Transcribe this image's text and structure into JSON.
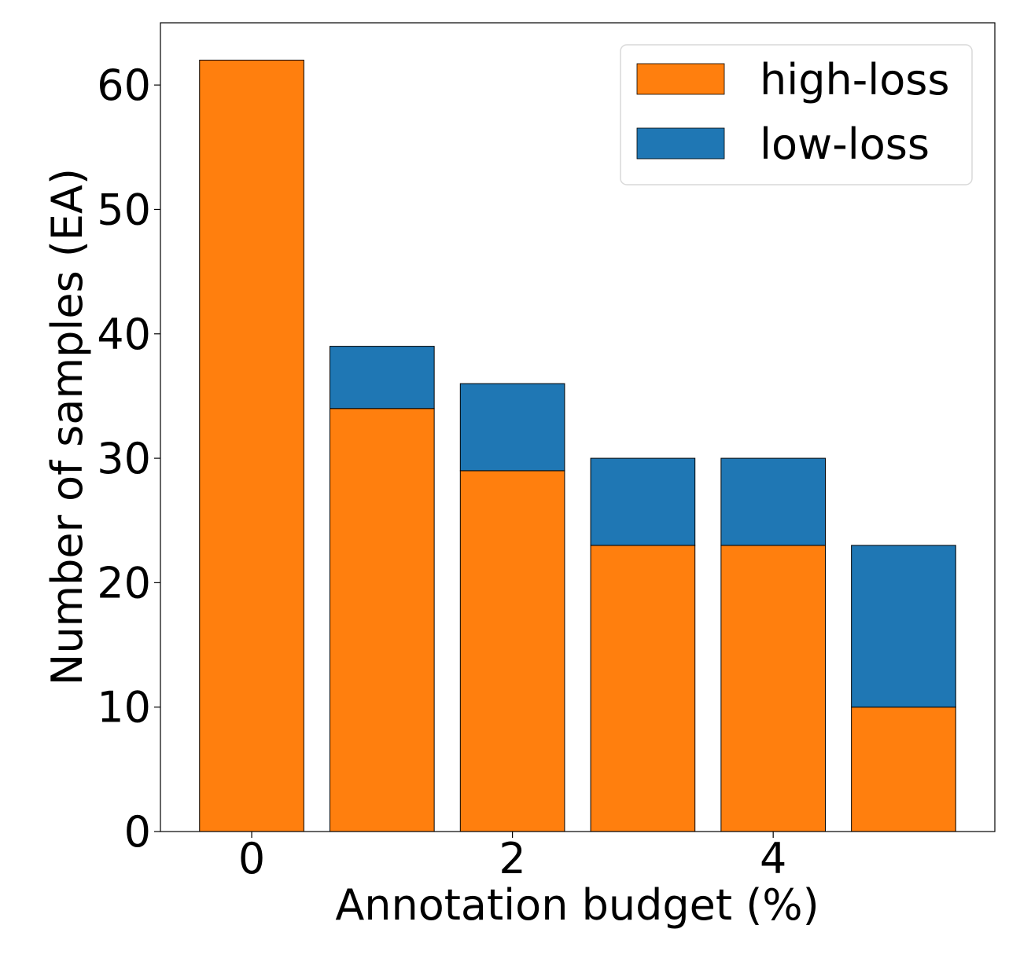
{
  "chart_data": {
    "type": "bar",
    "stacked": true,
    "title": "",
    "xlabel": "Annotation budget (%)",
    "ylabel": "Number of samples (EA)",
    "x": [
      0,
      1,
      2,
      3,
      4,
      5
    ],
    "xticks": [
      0,
      2,
      4
    ],
    "yticks": [
      0,
      10,
      20,
      30,
      40,
      50,
      60
    ],
    "xlim": [
      -0.7,
      5.7
    ],
    "ylim": [
      0,
      65
    ],
    "series": [
      {
        "name": "high-loss",
        "color": "#ff7f0e",
        "values": [
          62,
          34,
          29,
          23,
          23,
          10
        ]
      },
      {
        "name": "low-loss",
        "color": "#1f77b4",
        "values": [
          0,
          5,
          7,
          7,
          7,
          13
        ]
      }
    ],
    "legend": {
      "location": "top-right",
      "entries": [
        "high-loss",
        "low-loss"
      ]
    }
  }
}
